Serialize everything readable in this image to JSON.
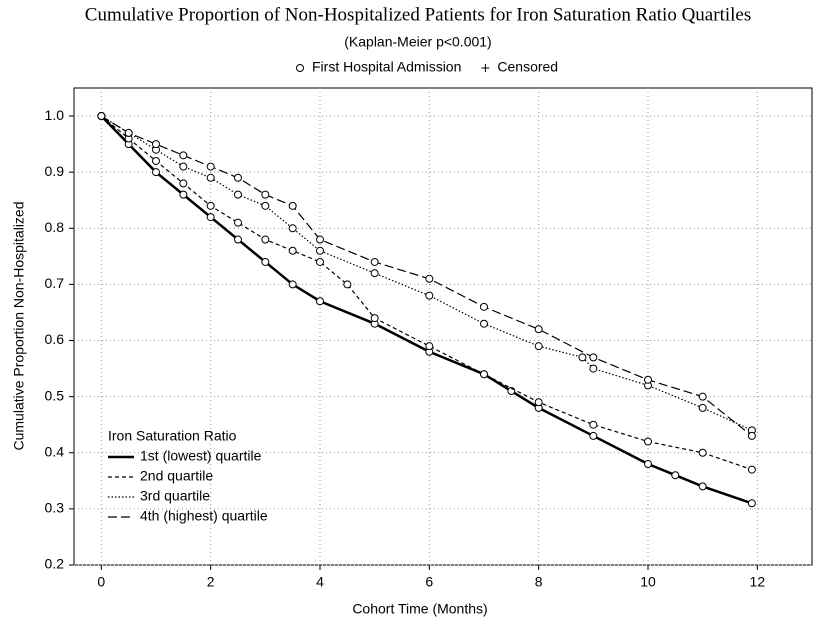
{
  "chart_data": {
    "type": "line",
    "title": "Cumulative Proportion of Non-Hospitalized Patients for Iron Saturation Ratio Quartiles",
    "subtitle": "(Kaplan-Meier p<0.001)",
    "marker_legend": [
      {
        "symbol": "circle",
        "label": "First Hospital Admission"
      },
      {
        "symbol": "plus",
        "label": "Censored"
      }
    ],
    "x_label": "Cohort Time (Months)",
    "y_label": "Cumulative Proportion Non-Hospitalized",
    "legend_title": "Iron Saturation Ratio",
    "legend_position": "lower left",
    "grid": true,
    "xlim": [
      -0.5,
      13
    ],
    "ylim": [
      0.2,
      1.05
    ],
    "xticks": [
      0,
      2,
      4,
      6,
      8,
      10,
      12
    ],
    "yticks": [
      0.2,
      0.3,
      0.4,
      0.5,
      0.6,
      0.7,
      0.8,
      0.9,
      {
        "value": 1,
        "label": "1.0"
      }
    ],
    "series": [
      {
        "name": "1st (lowest) quartile",
        "color": "#000000",
        "line_style": "solid",
        "x": [
          0,
          0.5,
          1,
          1.5,
          2,
          2.5,
          3,
          3.5,
          4,
          5,
          6,
          7,
          7.5,
          8,
          9,
          10,
          10.5,
          11,
          11.9
        ],
        "values": [
          1.0,
          0.95,
          0.9,
          0.86,
          0.82,
          0.78,
          0.74,
          0.7,
          0.67,
          0.63,
          0.58,
          0.54,
          0.51,
          0.48,
          0.43,
          0.38,
          0.36,
          0.34,
          0.31
        ]
      },
      {
        "name": "2nd quartile",
        "color": "#000000",
        "line_style": "dashed",
        "x": [
          0,
          0.5,
          1,
          1.5,
          2,
          2.5,
          3,
          3.5,
          4,
          4.5,
          5,
          6,
          7,
          8,
          9,
          10,
          11,
          11.9
        ],
        "values": [
          1.0,
          0.96,
          0.92,
          0.88,
          0.84,
          0.81,
          0.78,
          0.76,
          0.74,
          0.7,
          0.64,
          0.59,
          0.54,
          0.49,
          0.45,
          0.42,
          0.4,
          0.37
        ]
      },
      {
        "name": "3rd quartile",
        "color": "#000000",
        "line_style": "dotted",
        "x": [
          0,
          0.5,
          1,
          1.5,
          2,
          2.5,
          3,
          3.5,
          4,
          5,
          6,
          7,
          8,
          8.8,
          9,
          10,
          11,
          11.9
        ],
        "values": [
          1.0,
          0.97,
          0.94,
          0.91,
          0.89,
          0.86,
          0.84,
          0.8,
          0.76,
          0.72,
          0.68,
          0.63,
          0.59,
          0.57,
          0.55,
          0.52,
          0.48,
          0.44
        ]
      },
      {
        "name": "4th (highest) quartile",
        "color": "#000000",
        "line_style": "long-dash",
        "x": [
          0,
          0.5,
          1,
          1.5,
          2,
          2.5,
          3,
          3.5,
          4,
          5,
          6,
          7,
          8,
          9,
          10,
          11,
          11.9
        ],
        "values": [
          1.0,
          0.97,
          0.95,
          0.93,
          0.91,
          0.89,
          0.86,
          0.84,
          0.78,
          0.74,
          0.71,
          0.66,
          0.62,
          0.57,
          0.53,
          0.5,
          0.43
        ]
      }
    ]
  }
}
